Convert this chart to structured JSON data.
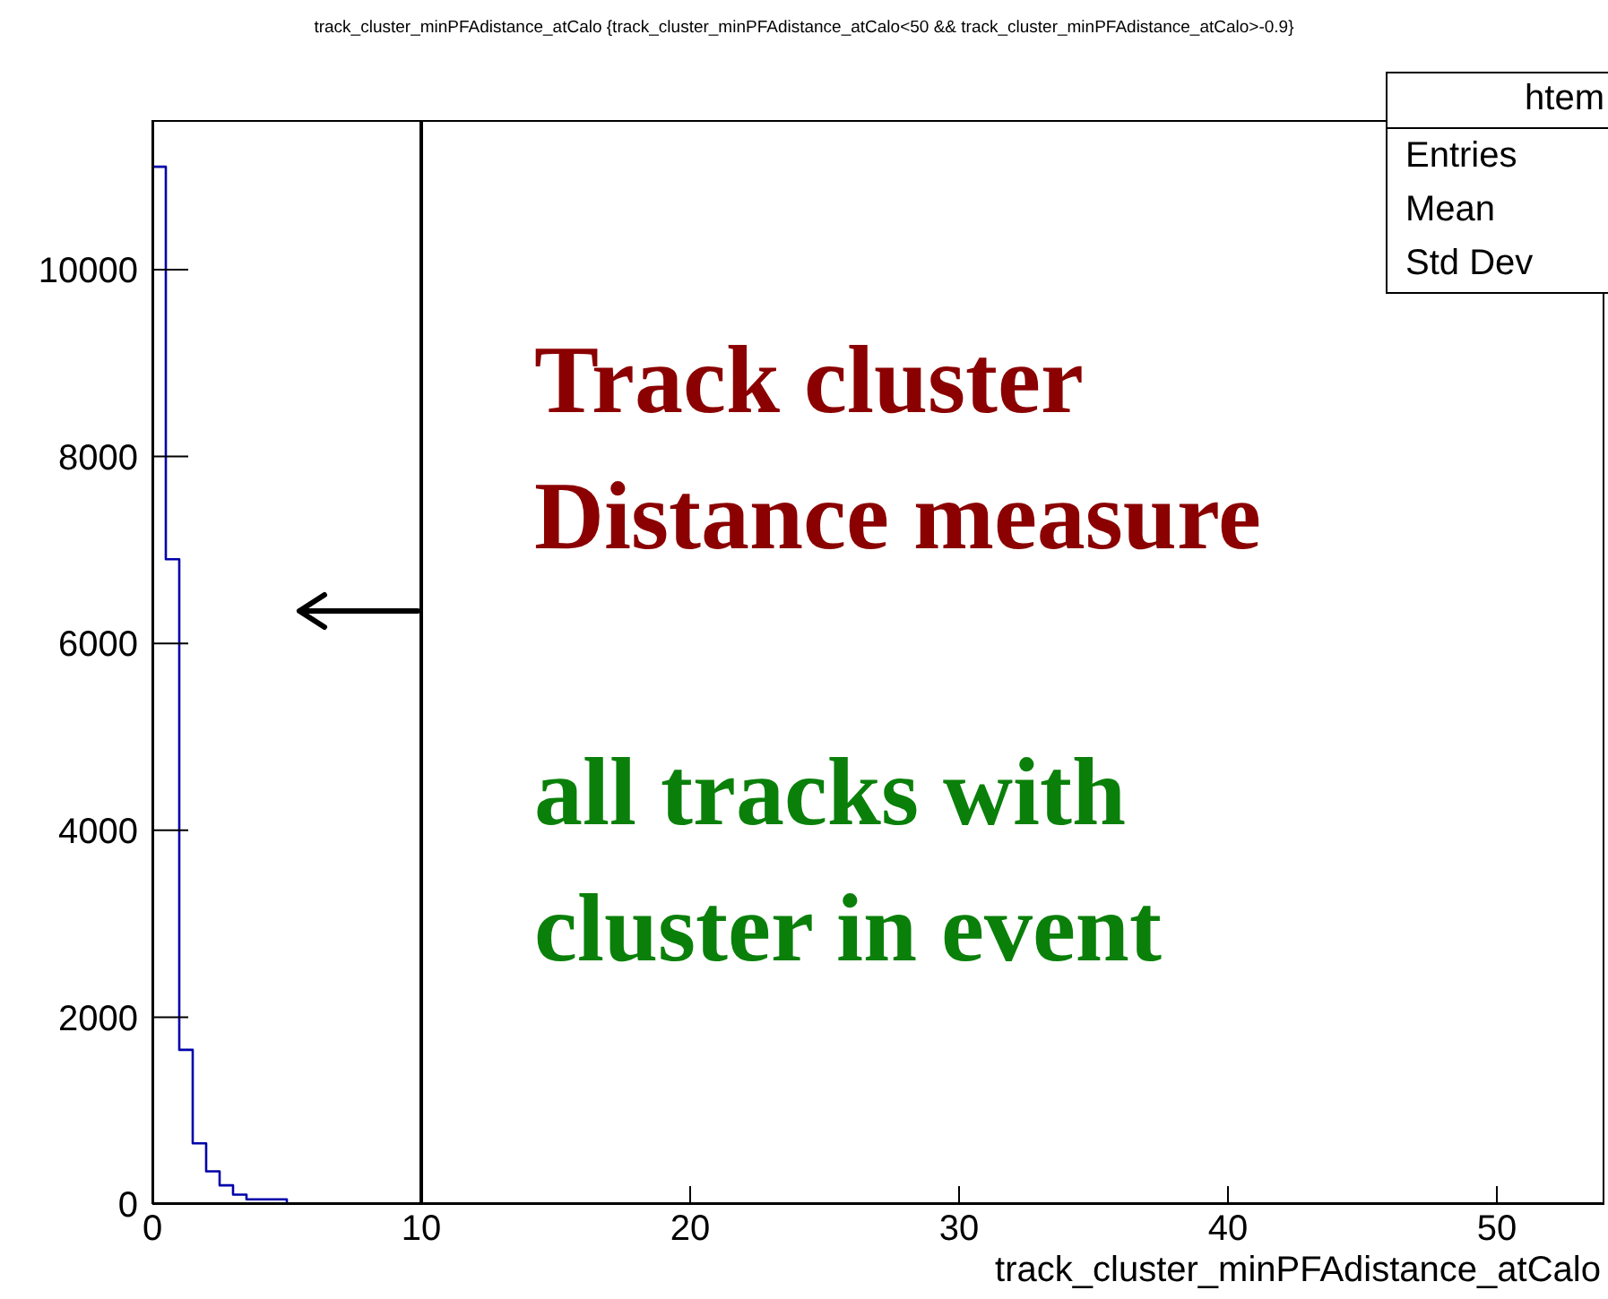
{
  "chart_data": {
    "type": "histogram",
    "title": "track_cluster_minPFAdistance_atCalo {track_cluster_minPFAdistance_atCalo<50 && track_cluster_minPFAdistance_atCalo>-0.9}",
    "xlabel": "track_cluster_minPFAdistance_atCalo",
    "bins": [
      0,
      0.5,
      1,
      1.5,
      2,
      2.5,
      3,
      3.5,
      4,
      4.5,
      5,
      5.5,
      6,
      6.5,
      7,
      7.5,
      8,
      8.5,
      9,
      9.5,
      10,
      10.5,
      11,
      11.5,
      12,
      12.5,
      13,
      13.5,
      14,
      14.5,
      15,
      15.5,
      16,
      16.5,
      17,
      17.5,
      18,
      18.5,
      19,
      19.5,
      20,
      20.5,
      21,
      21.5,
      22,
      22.5,
      23,
      23.5,
      24,
      24.5,
      25,
      25.5,
      26,
      26.5,
      27,
      27.5,
      28,
      28.5,
      29,
      29.5,
      30,
      30.5,
      31,
      31.5,
      32,
      32.5,
      33,
      33.5,
      34,
      34.5,
      35,
      35.5,
      36,
      36.5,
      37,
      37.5,
      38,
      38.5,
      39,
      39.5,
      40,
      40.5,
      41,
      41.5,
      42,
      42.5,
      43,
      43.5,
      44,
      44.5,
      45,
      45.5,
      46,
      46.5,
      47,
      47.5,
      48,
      48.5,
      49,
      49.5,
      50
    ],
    "values": [
      11100,
      6900,
      1650,
      650,
      350,
      200,
      100,
      50,
      50,
      50,
      0,
      0,
      0,
      0,
      0,
      0,
      0,
      0,
      0,
      0,
      0,
      0,
      0,
      0,
      0,
      0,
      0,
      0,
      0,
      0,
      0,
      0,
      0,
      0,
      0,
      0,
      0,
      0,
      0,
      0,
      0,
      0,
      0,
      0,
      0,
      0,
      0,
      0,
      0,
      0,
      0,
      0,
      0,
      0,
      0,
      0,
      0,
      0,
      0,
      0,
      0,
      0,
      0,
      0,
      0,
      0,
      0,
      0,
      0,
      0,
      0,
      0,
      0,
      0,
      0,
      0,
      0,
      0,
      0,
      0,
      0,
      0,
      0,
      0,
      0,
      0,
      0,
      0,
      0,
      0,
      0,
      0,
      0,
      0,
      0,
      0,
      0,
      0,
      0,
      0
    ],
    "color": "#0000aa",
    "xlim": [
      0,
      54
    ],
    "xticks": [
      0,
      10,
      20,
      30,
      40,
      50
    ],
    "ylim": [
      0,
      11600
    ],
    "yticks": [
      0,
      2000,
      4000,
      6000,
      8000,
      10000
    ],
    "grid": false,
    "ref_lines": [
      {
        "axis": "x",
        "value": 10,
        "color": "#000000"
      }
    ],
    "annotations": [
      "htem",
      "Entries",
      "Mean",
      "Std Dev",
      "Track cluster\nDistance measure",
      "all tracks with\ncluster in event"
    ]
  }
}
